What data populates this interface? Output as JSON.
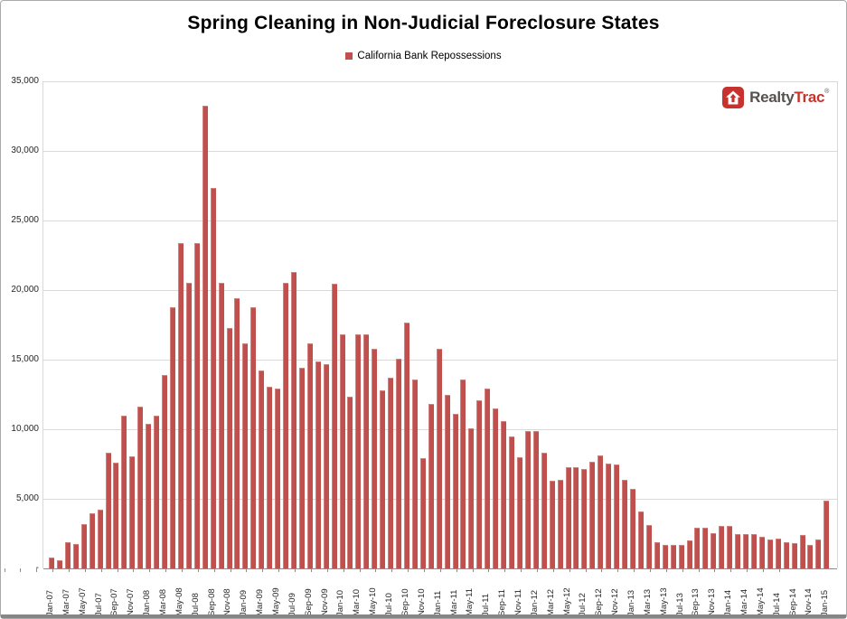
{
  "title": "Spring Cleaning in Non-Judicial Foreclosure States",
  "legend": {
    "label": "California Bank Repossessions",
    "swatch_color": "#c0504d"
  },
  "logo": {
    "realty": "Realty",
    "trac": "Trac",
    "reg": "®"
  },
  "chart_data": {
    "type": "bar",
    "series_name": "California Bank Repossessions",
    "bar_color": "#c0504d",
    "grid": true,
    "ylim": [
      0,
      35000
    ],
    "y_tick_interval": 5000,
    "y_tick_labels": [
      "35,000",
      "30,000",
      "25,000",
      "20,000",
      "15,000",
      "10,000",
      "5,000",
      "-"
    ],
    "x_label_every": 2,
    "x": [
      "Jan-07",
      "Feb-07",
      "Mar-07",
      "Apr-07",
      "May-07",
      "Jun-07",
      "Jul-07",
      "Aug-07",
      "Sep-07",
      "Oct-07",
      "Nov-07",
      "Dec-07",
      "Jan-08",
      "Feb-08",
      "Mar-08",
      "Apr-08",
      "May-08",
      "Jun-08",
      "Jul-08",
      "Aug-08",
      "Sep-08",
      "Oct-08",
      "Nov-08",
      "Dec-08",
      "Jan-09",
      "Feb-09",
      "Mar-09",
      "Apr-09",
      "May-09",
      "Jun-09",
      "Jul-09",
      "Aug-09",
      "Sep-09",
      "Oct-09",
      "Nov-09",
      "Dec-09",
      "Jan-10",
      "Feb-10",
      "Mar-10",
      "Apr-10",
      "May-10",
      "Jun-10",
      "Jul-10",
      "Aug-10",
      "Sep-10",
      "Oct-10",
      "Nov-10",
      "Dec-10",
      "Jan-11",
      "Feb-11",
      "Mar-11",
      "Apr-11",
      "May-11",
      "Jun-11",
      "Jul-11",
      "Aug-11",
      "Sep-11",
      "Oct-11",
      "Nov-11",
      "Dec-11",
      "Jan-12",
      "Feb-12",
      "Mar-12",
      "Apr-12",
      "May-12",
      "Jun-12",
      "Jul-12",
      "Aug-12",
      "Sep-12",
      "Oct-12",
      "Nov-12",
      "Dec-12",
      "Jan-13",
      "Feb-13",
      "Mar-13",
      "Apr-13",
      "May-13",
      "Jun-13",
      "Jul-13",
      "Aug-13",
      "Sep-13",
      "Oct-13",
      "Nov-13",
      "Dec-13",
      "Jan-14",
      "Feb-14",
      "Mar-14",
      "Apr-14",
      "May-14",
      "Jun-14",
      "Jul-14",
      "Aug-14",
      "Sep-14",
      "Oct-14",
      "Nov-14",
      "Dec-14",
      "Jan-15"
    ],
    "values": [
      800,
      600,
      1900,
      1750,
      3200,
      3950,
      4200,
      8300,
      7600,
      11000,
      8050,
      11650,
      10400,
      10950,
      13900,
      18750,
      23400,
      20550,
      23350,
      33250,
      27350,
      20500,
      17300,
      19450,
      16200,
      18800,
      14200,
      13050,
      12900,
      20550,
      21300,
      14450,
      16200,
      14850,
      14650,
      20450,
      16850,
      12350,
      16800,
      16850,
      15800,
      12800,
      13700,
      15050,
      17650,
      13600,
      7950,
      11800,
      15750,
      12500,
      11100,
      13600,
      10050,
      12100,
      12950,
      11500,
      10600,
      9500,
      8000,
      9900,
      9850,
      8300,
      6300,
      6350,
      7250,
      7250,
      7150,
      7650,
      8150,
      7550,
      7500,
      6350,
      5700,
      4100,
      3150,
      1900,
      1700,
      1700,
      1700,
      2000,
      2900,
      2950,
      2550,
      3050,
      3050,
      2500,
      2450,
      2450,
      2300,
      2100,
      2150,
      1900,
      1800,
      2400,
      1700,
      2100,
      4900
    ]
  }
}
